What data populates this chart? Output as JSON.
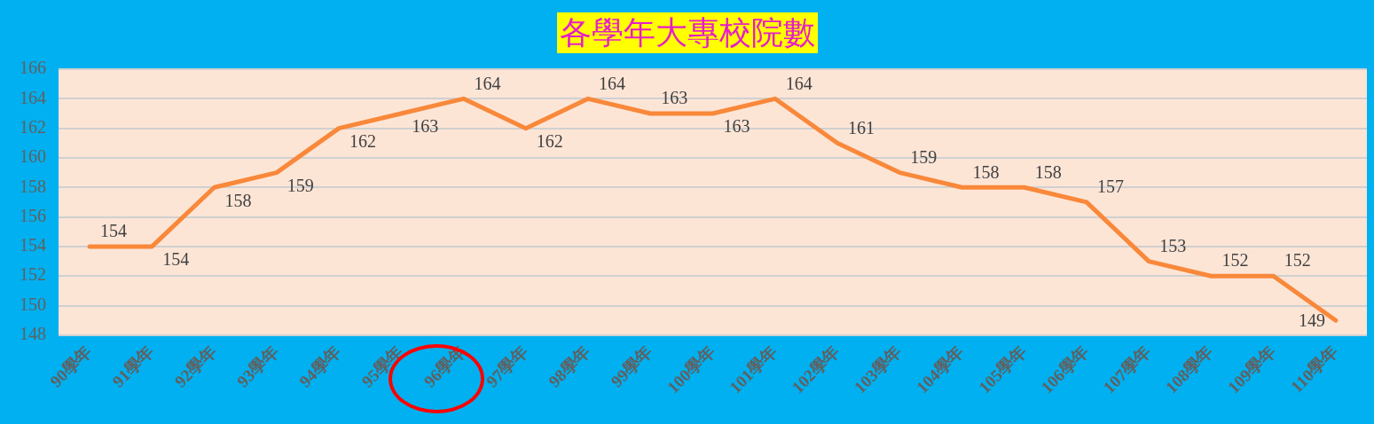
{
  "chart_data": {
    "type": "line",
    "title": "各學年大專校院數",
    "categories": [
      "90學年",
      "91學年",
      "92學年",
      "93學年",
      "94學年",
      "95學年",
      "96學年",
      "97學年",
      "98學年",
      "99學年",
      "100學年",
      "101學年",
      "102學年",
      "103學年",
      "104學年",
      "105學年",
      "106學年",
      "107學年",
      "108學年",
      "109學年",
      "110學年"
    ],
    "series": [
      {
        "color": "#f9883a",
        "values": [
          154,
          154,
          158,
          159,
          162,
          163,
          164,
          162,
          164,
          163,
          163,
          164,
          161,
          159,
          158,
          158,
          157,
          153,
          152,
          152,
          149
        ]
      }
    ],
    "ylim": [
      148,
      166
    ],
    "yticks": [
      148,
      150,
      152,
      154,
      156,
      158,
      160,
      162,
      164,
      166
    ],
    "grid": "y",
    "legend": false,
    "marker": "none",
    "line_style": "solid",
    "data_labels": true
  }
}
